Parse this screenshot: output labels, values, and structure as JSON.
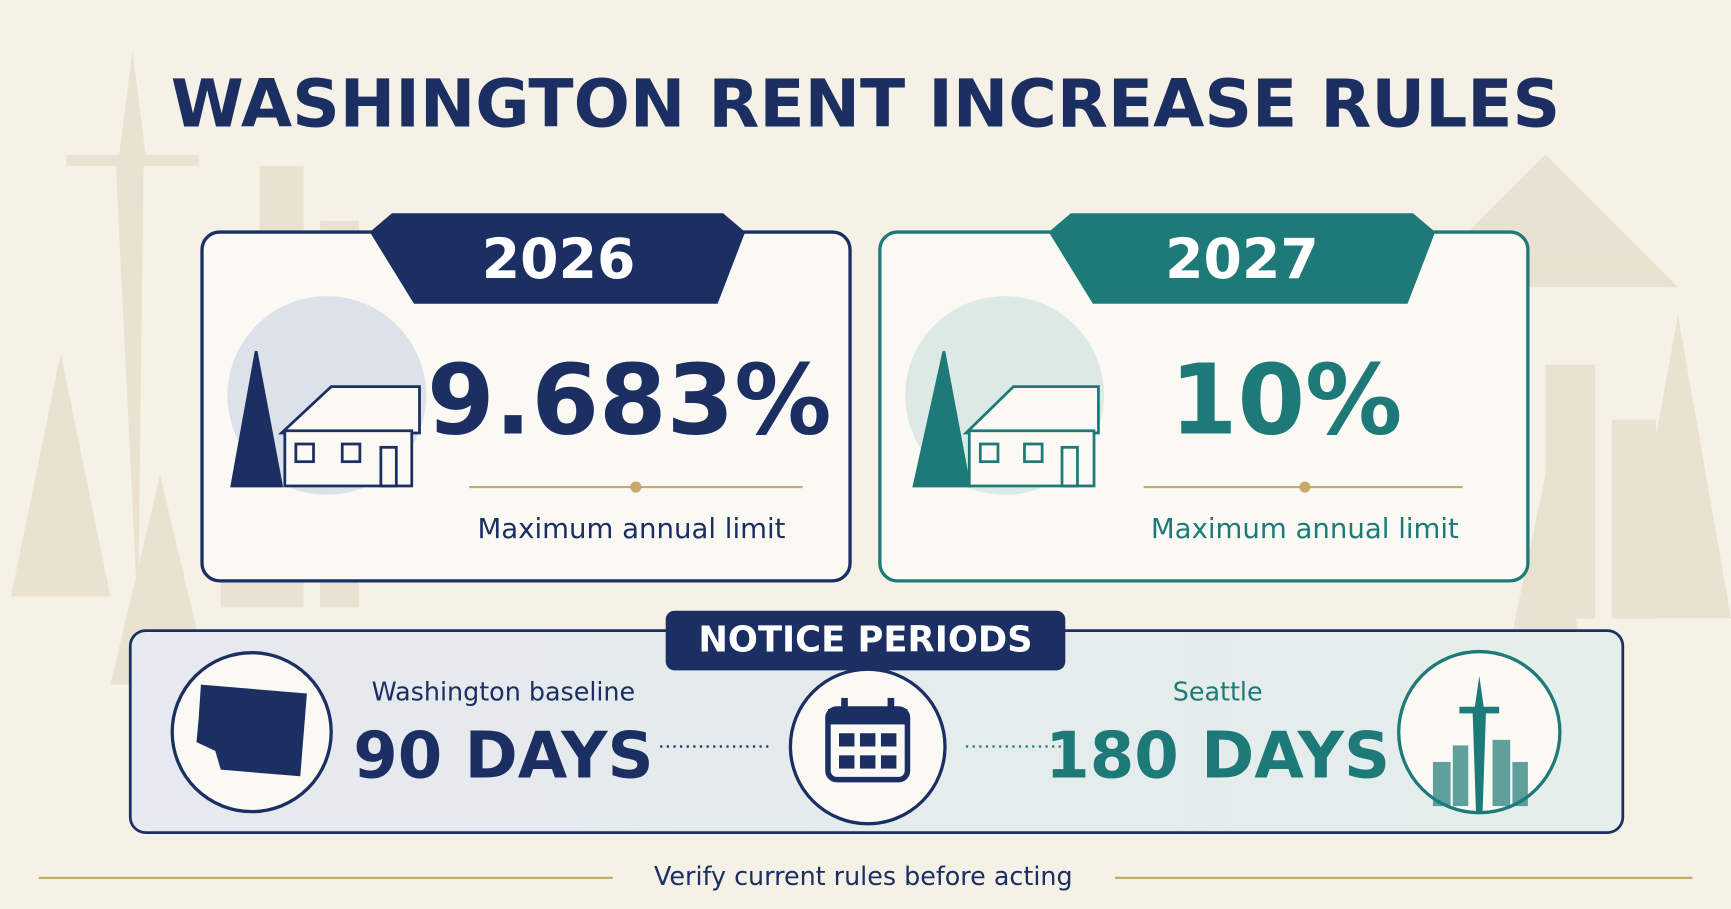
{
  "title": "WASHINGTON RENT INCREASE RULES",
  "cards": [
    {
      "year": "2026",
      "rate": "9.683%",
      "caption": "Maximum annual limit"
    },
    {
      "year": "2027",
      "rate": "10%",
      "caption": "Maximum annual limit"
    }
  ],
  "notice": {
    "heading": "NOTICE PERIODS",
    "items": [
      {
        "label": "Washington baseline",
        "value": "90 DAYS"
      },
      {
        "label": "Seattle",
        "value": "180 DAYS"
      }
    ]
  },
  "footer": "Verify current rules before acting"
}
